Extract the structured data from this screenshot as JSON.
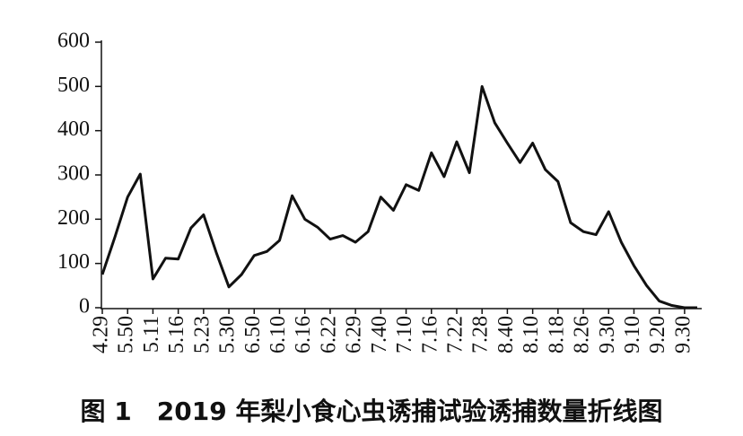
{
  "chart_data": {
    "type": "line",
    "title": "图 1　2019 年梨小食心虫诱捕试验诱捕数量折线图",
    "categories": [
      "4.29",
      null,
      "5.50",
      null,
      "5.11",
      null,
      "5.16",
      null,
      "5.23",
      null,
      "5.30",
      null,
      "6.50",
      null,
      "6.10",
      null,
      "6.16",
      null,
      "6.22",
      null,
      "6.29",
      null,
      "7.40",
      null,
      "7.10",
      null,
      "7.16",
      null,
      "7.22",
      null,
      "7.28",
      null,
      "8.40",
      null,
      "8.10",
      null,
      "8.18",
      null,
      "8.26",
      null,
      "9.30",
      null,
      "9.10",
      null,
      "9.20",
      null,
      "9.30",
      null
    ],
    "values": [
      75,
      160,
      250,
      302,
      65,
      112,
      110,
      180,
      210,
      125,
      47,
      75,
      118,
      127,
      152,
      253,
      200,
      182,
      155,
      163,
      148,
      172,
      250,
      220,
      278,
      265,
      350,
      296,
      375,
      305,
      500,
      418,
      372,
      328,
      372,
      312,
      285,
      192,
      172,
      165,
      217,
      148,
      95,
      50,
      15,
      5,
      0,
      0
    ],
    "color": "#111111",
    "ylim": [
      0,
      600
    ],
    "yticks": [
      0,
      100,
      200,
      300,
      400,
      500,
      600
    ]
  }
}
